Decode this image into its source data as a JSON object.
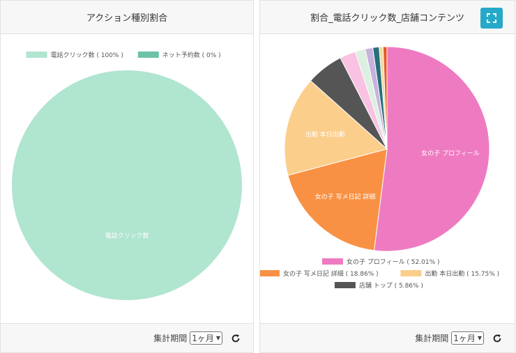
{
  "panels": {
    "left": {
      "title": "アクション種別割合",
      "period_label": "集計期間",
      "period_value": "1ヶ月"
    },
    "right": {
      "title": "割合_電話クリック数_店舗コンテンツ",
      "period_label": "集計期間",
      "period_value": "1ヶ月"
    }
  },
  "icons": {
    "refresh": "refresh-icon",
    "expand": "expand-icon",
    "dropdown": "chevron-down-icon"
  },
  "colors": {
    "accent": "#26a9c8"
  },
  "chart_data": [
    {
      "type": "pie",
      "title": "アクション種別割合",
      "slices": [
        {
          "label": "電話クリック数",
          "value": 100,
          "color": "#b0e5d0"
        },
        {
          "label": "ネット予約数",
          "value": 0,
          "color": "#6dc2a8"
        }
      ],
      "legend": [
        {
          "text": "電話クリック数 ( 100% )",
          "color": "#b0e5d0"
        },
        {
          "text": "ネット予約数 ( 0% )",
          "color": "#6dc2a8"
        }
      ],
      "slice_labels": [
        "電話クリック数"
      ],
      "legend_position": "top"
    },
    {
      "type": "pie",
      "title": "割合_電話クリック数_店舗コンテンツ",
      "slices": [
        {
          "label": "女の子 プロフィール",
          "value": 52.01,
          "color": "#ee7bc1"
        },
        {
          "label": "女の子 写メ日記 詳細",
          "value": 18.86,
          "color": "#f99144"
        },
        {
          "label": "出勤 本日出勤",
          "value": 15.75,
          "color": "#fbce8c"
        },
        {
          "label": "店舗 トップ",
          "value": 5.86,
          "color": "#555555"
        },
        {
          "label": "",
          "value": 2.5,
          "color": "#f9c2e2"
        },
        {
          "label": "",
          "value": 1.6,
          "color": "#dcefe1"
        },
        {
          "label": "",
          "value": 1.2,
          "color": "#c6b3dc"
        },
        {
          "label": "",
          "value": 1.0,
          "color": "#27707a"
        },
        {
          "label": "",
          "value": 0.6,
          "color": "#f3d9a0"
        },
        {
          "label": "",
          "value": 0.62,
          "color": "#e85b2a"
        }
      ],
      "legend": [
        {
          "text": "女の子 プロフィール ( 52.01% )",
          "color": "#ee7bc1"
        },
        {
          "text": "女の子 写メ日記 詳細 ( 18.86% )",
          "color": "#f99144"
        },
        {
          "text": "出勤 本日出勤 ( 15.75% )",
          "color": "#fbce8c"
        },
        {
          "text": "店舗 トップ ( 5.86% )",
          "color": "#555555"
        }
      ],
      "slice_labels": [
        "女の子 プロフィール",
        "女の子 写メ日記 詳細",
        "出勤 本日出勤"
      ],
      "legend_position": "bottom"
    }
  ]
}
